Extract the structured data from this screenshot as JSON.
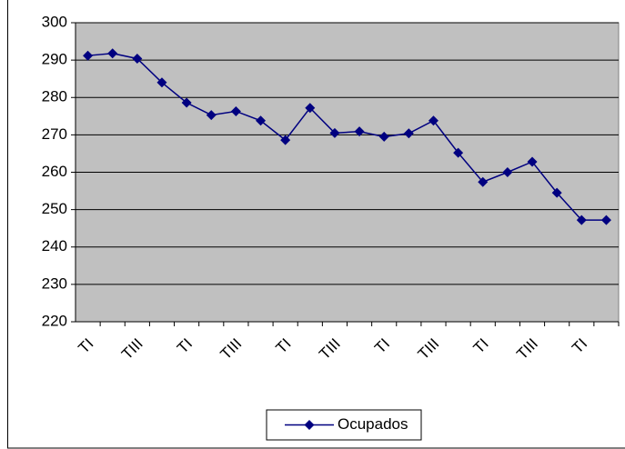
{
  "chart_data": {
    "type": "line",
    "categories": [
      "TI",
      null,
      "TIII",
      null,
      "TI",
      null,
      "TIII",
      null,
      "TI",
      null,
      "TIII",
      null,
      "TI",
      null,
      "TIII",
      null,
      "TI",
      null,
      "TIII",
      null,
      "TI",
      null
    ],
    "series": [
      {
        "name": "Ocupados",
        "color": "#000080",
        "values": [
          291.2,
          291.8,
          290.4,
          284,
          278.6,
          275.3,
          276.3,
          273.8,
          268.6,
          277.2,
          270.5,
          270.9,
          269.5,
          270.4,
          273.8,
          265.2,
          257.4,
          260,
          262.8,
          254.5,
          247.2,
          247.2
        ]
      }
    ],
    "ylim": [
      220,
      300
    ],
    "yticks": [
      220,
      230,
      240,
      250,
      260,
      270,
      280,
      290,
      300
    ],
    "grid": true,
    "plot_background": "#c0c0c0",
    "legend": "bottom"
  }
}
